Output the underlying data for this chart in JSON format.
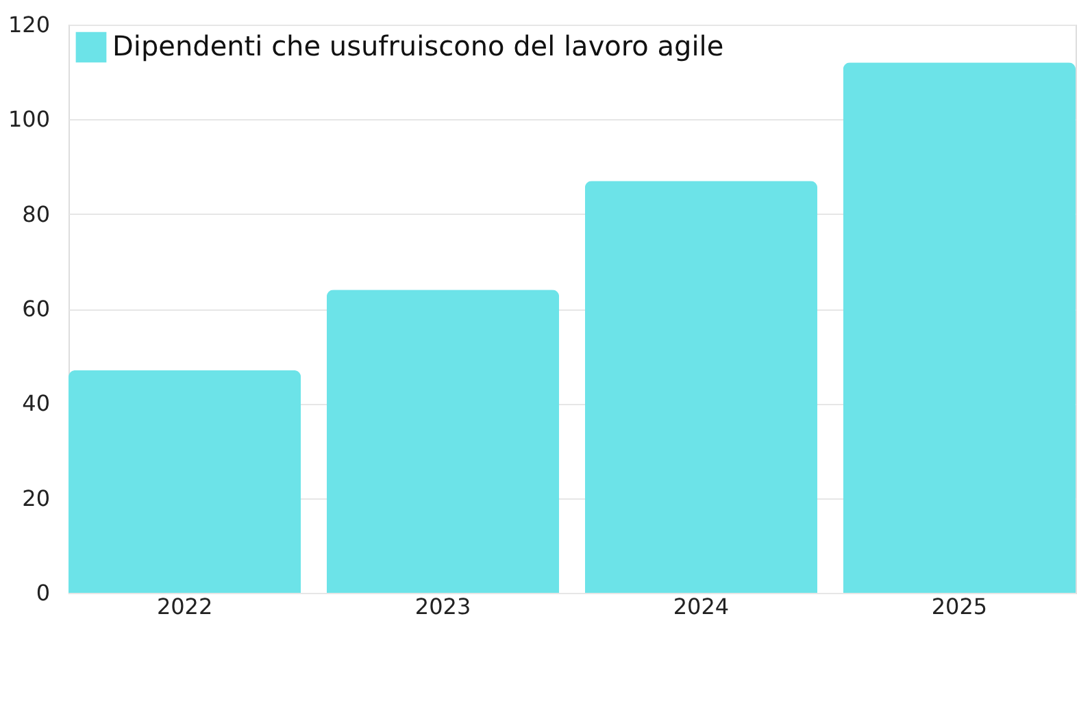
{
  "chart_data": {
    "type": "bar",
    "categories": [
      "2022",
      "2023",
      "2024",
      "2025"
    ],
    "series": [
      {
        "name": "Dipendenti che usufruiscono del lavoro agile",
        "color": "#6ce3e8",
        "values": [
          47,
          64,
          87,
          112
        ]
      }
    ],
    "ylim": [
      0,
      120
    ],
    "yticks": [
      0,
      20,
      40,
      60,
      80,
      100,
      120
    ],
    "grid": "y",
    "legend": "top left"
  }
}
